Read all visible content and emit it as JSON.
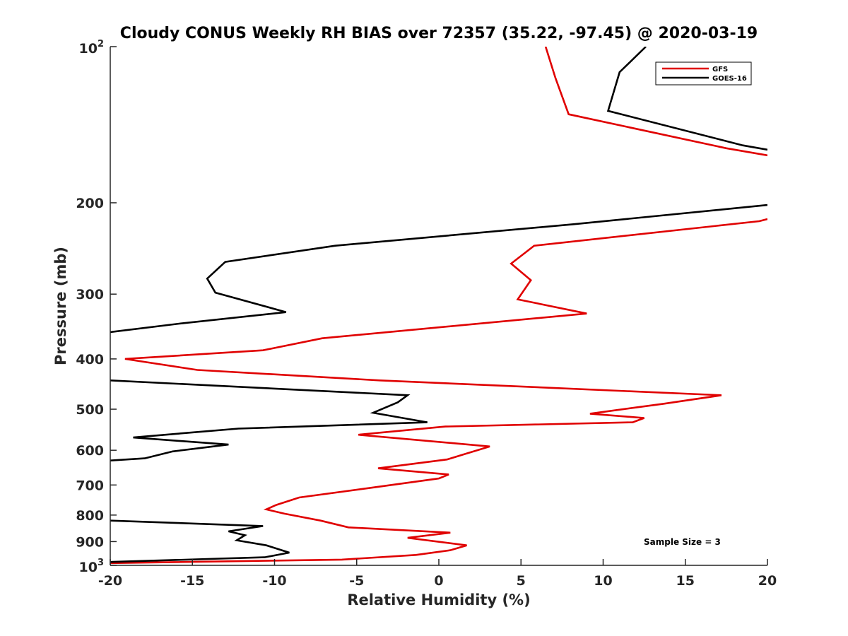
{
  "chart_data": {
    "type": "line",
    "title": "Cloudy CONUS Weekly RH BIAS over 72357 (35.22, -97.45) @ 2020-03-19",
    "xlabel": "Relative Humidity (%)",
    "ylabel": "Pressure (mb)",
    "xlim": [
      -20,
      20
    ],
    "ylim": [
      100,
      1000
    ],
    "y_scale": "log",
    "y_reversed": true,
    "xticks": [
      -20,
      -15,
      -10,
      -5,
      0,
      5,
      10,
      15,
      20
    ],
    "xtick_labels": [
      "-20",
      "-15",
      "-10",
      "-5",
      "0",
      "5",
      "10",
      "15",
      "20"
    ],
    "yticks": [
      200,
      300,
      400,
      500,
      600,
      700,
      800,
      900
    ],
    "ytick_labels": [
      "200",
      "300",
      "400",
      "500",
      "600",
      "700",
      "800",
      "900"
    ],
    "ytick_top": {
      "base": "10",
      "exp": "2",
      "value": 100
    },
    "ytick_bottom": {
      "base": "10",
      "exp": "3",
      "value": 1000
    },
    "grid": false,
    "legend_position": "top-right",
    "annotation": "Sample Size = 3",
    "series": [
      {
        "name": "GFS",
        "color": "#e00000",
        "points": [
          [
            6.5,
            100
          ],
          [
            7.1,
            115
          ],
          [
            7.9,
            135
          ],
          [
            17.5,
            157
          ],
          [
            20,
            162
          ],
          [
            null,
            200
          ],
          [
            20,
            215
          ],
          [
            19.5,
            217
          ],
          [
            5.8,
            242
          ],
          [
            4.4,
            262
          ],
          [
            5.6,
            282
          ],
          [
            4.8,
            307
          ],
          [
            9,
            327
          ],
          [
            -7.1,
            365
          ],
          [
            -10.7,
            385
          ],
          [
            -19.1,
            400
          ],
          [
            -14.7,
            420
          ],
          [
            -3.6,
            440
          ],
          [
            17.2,
            470
          ],
          [
            13.7,
            488
          ],
          [
            9.2,
            510
          ],
          [
            12.5,
            520
          ],
          [
            11.8,
            530
          ],
          [
            0.4,
            540
          ],
          [
            -4.9,
            560
          ],
          [
            3.1,
            590
          ],
          [
            1.6,
            610
          ],
          [
            0.5,
            625
          ],
          [
            -3.7,
            650
          ],
          [
            0.6,
            668
          ],
          [
            0,
            680
          ],
          [
            -4.3,
            710
          ],
          [
            -8.5,
            740
          ],
          [
            -9.9,
            765
          ],
          [
            -10.5,
            780
          ],
          [
            -9.4,
            795
          ],
          [
            -7.2,
            820
          ],
          [
            -5.5,
            845
          ],
          [
            0.7,
            865
          ],
          [
            -1.9,
            885
          ],
          [
            1.7,
            915
          ],
          [
            0.7,
            935
          ],
          [
            -1.4,
            955
          ],
          [
            -5.9,
            975
          ],
          [
            -20,
            990
          ]
        ]
      },
      {
        "name": "GOES-16",
        "color": "#000000",
        "points": [
          [
            12.6,
            100
          ],
          [
            11,
            112
          ],
          [
            10.3,
            133
          ],
          [
            18.5,
            155
          ],
          [
            20,
            158
          ],
          [
            null,
            200
          ],
          [
            20,
            202
          ],
          [
            8.2,
            220
          ],
          [
            -6.3,
            242
          ],
          [
            -13,
            260
          ],
          [
            -14.1,
            280
          ],
          [
            -13.6,
            298
          ],
          [
            -9.3,
            325
          ],
          [
            -15.8,
            342
          ],
          [
            -20,
            355
          ],
          [
            null,
            400
          ],
          [
            -20,
            440
          ],
          [
            -1.9,
            470
          ],
          [
            -2.5,
            485
          ],
          [
            -4,
            508
          ],
          [
            -0.7,
            530
          ],
          [
            -12.2,
            545
          ],
          [
            -15.2,
            555
          ],
          [
            -18.6,
            567
          ],
          [
            -12.8,
            585
          ],
          [
            -16.2,
            603
          ],
          [
            -17.9,
            622
          ],
          [
            -20,
            628
          ],
          [
            null,
            700
          ],
          [
            -20,
            820
          ],
          [
            -10.7,
            840
          ],
          [
            -12.8,
            860
          ],
          [
            -11.8,
            875
          ],
          [
            -12.3,
            895
          ],
          [
            -10.5,
            915
          ],
          [
            -9.1,
            945
          ],
          [
            -10.6,
            965
          ],
          [
            -20,
            985
          ]
        ]
      }
    ]
  }
}
